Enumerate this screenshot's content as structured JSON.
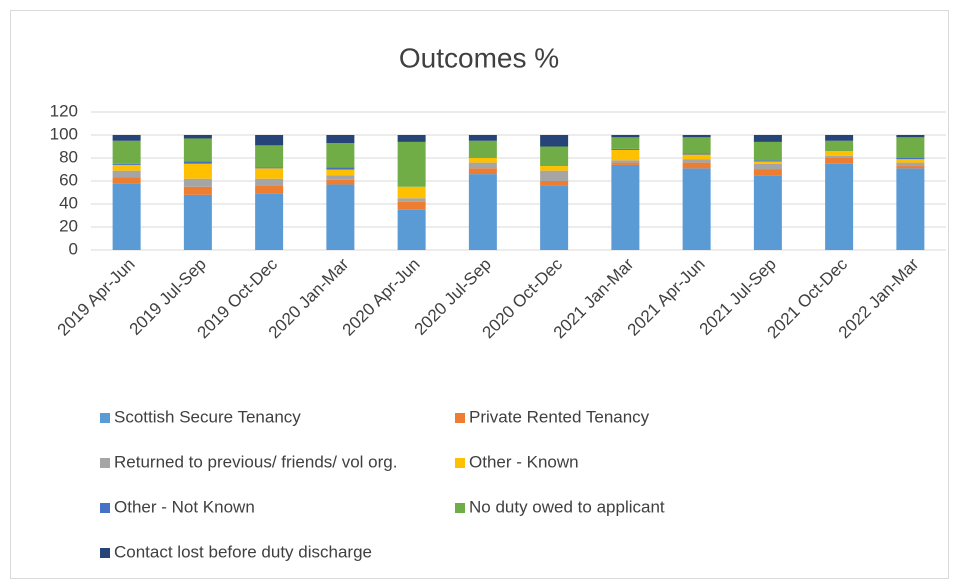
{
  "chart_data": {
    "type": "stacked_bar",
    "title": "Outcomes %",
    "categories": [
      "2019 Apr-Jun",
      "2019 Jul-Sep",
      "2019 Oct-Dec",
      "2020 Jan-Mar",
      "2020 Apr-Jun",
      "2020 Jul-Sep",
      "2020 Oct-Dec",
      "2021 Jan-Mar",
      "2021 Apr-Jun",
      "2021 Jul-Sep",
      "2021 Oct-Dec",
      "2022 Jan-Mar"
    ],
    "series": [
      {
        "name": "Scottish Secure Tenancy",
        "color": "#5b9bd5",
        "values": [
          58,
          48,
          49,
          57,
          35,
          66,
          56,
          74,
          71,
          65,
          75,
          71
        ]
      },
      {
        "name": "Private Rented Tenancy",
        "color": "#ed7d31",
        "values": [
          5,
          7,
          7,
          4,
          7,
          5,
          4,
          2,
          5,
          5,
          5,
          2
        ]
      },
      {
        "name": "Returned to previous/ friends/ vol org.",
        "color": "#a5a5a5",
        "values": [
          6,
          7,
          6,
          4,
          3,
          5,
          9,
          2,
          3,
          5,
          2,
          3
        ]
      },
      {
        "name": "Other - Known",
        "color": "#ffc000",
        "values": [
          5,
          13,
          9,
          5,
          10,
          4,
          4,
          9,
          4,
          2,
          4,
          3
        ]
      },
      {
        "name": "Other - Not Known",
        "color": "#4472c4",
        "values": [
          1,
          2,
          1,
          2,
          0,
          0,
          0,
          1,
          1,
          1,
          0,
          1
        ]
      },
      {
        "name": "No duty owed to applicant",
        "color": "#70ad47",
        "values": [
          20,
          20,
          19,
          21,
          39,
          15,
          17,
          10,
          14,
          16,
          9,
          18
        ]
      },
      {
        "name": "Contact lost before duty discharge",
        "color": "#264478",
        "values": [
          5,
          3,
          9,
          7,
          6,
          5,
          10,
          2,
          2,
          6,
          5,
          2
        ]
      }
    ],
    "ylim": [
      0,
      120
    ],
    "yticks": [
      0,
      20,
      40,
      60,
      80,
      100,
      120
    ],
    "grid": true,
    "legend": "bottom"
  }
}
